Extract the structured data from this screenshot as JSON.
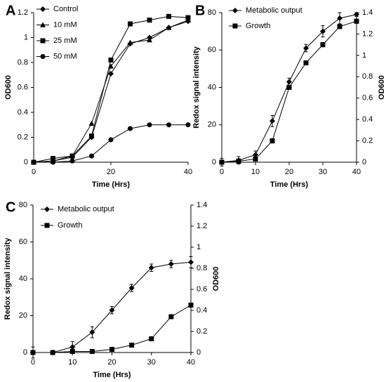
{
  "chart_data": [
    {
      "type": "line",
      "label": "A",
      "xlabel": "Time (Hrs)",
      "ylabel": "OD600",
      "x": [
        0,
        5,
        10,
        15,
        20,
        25,
        30,
        35,
        40
      ],
      "xlim": [
        0,
        40
      ],
      "xticks": [
        0,
        20,
        40
      ],
      "ylim": [
        0,
        1.2
      ],
      "yticks": [
        0,
        0.2,
        0.4,
        0.6,
        0.8,
        1,
        1.2
      ],
      "legend": "upper left",
      "series": [
        {
          "name": "Control",
          "color": "#000000",
          "marker": "diamond",
          "values": [
            0,
            0.01,
            0.04,
            0.2,
            0.71,
            0.95,
            1.0,
            1.08,
            1.13
          ]
        },
        {
          "name": "10 mM",
          "color": "#000000",
          "marker": "triangle",
          "values": [
            0,
            0.01,
            0.05,
            0.31,
            0.77,
            0.96,
            0.98,
            1.08,
            1.14
          ]
        },
        {
          "name": "25 mM",
          "color": "#000000",
          "marker": "square",
          "values": [
            0,
            0.03,
            0.05,
            0.21,
            0.82,
            1.11,
            1.14,
            1.17,
            1.16
          ]
        },
        {
          "name": "50 mM",
          "color": "#000000",
          "marker": "circle",
          "values": [
            0,
            0,
            0.01,
            0.05,
            0.18,
            0.27,
            0.3,
            0.3,
            0.3
          ]
        }
      ]
    },
    {
      "type": "line",
      "label": "B",
      "xlabel": "Time (Hrs)",
      "ylabel": "Redox signal intensity",
      "y2label": "OD600",
      "x": [
        0,
        5,
        10,
        15,
        20,
        25,
        30,
        35,
        40
      ],
      "xlim": [
        0,
        40
      ],
      "xticks": [
        0,
        10,
        20,
        30,
        40
      ],
      "ylim": [
        0,
        80
      ],
      "yticks": [
        0,
        20,
        40,
        60,
        80
      ],
      "y2lim": [
        0,
        1.4
      ],
      "y2ticks": [
        0,
        0.2,
        0.4,
        0.6,
        0.8,
        1,
        1.2,
        1.4
      ],
      "legend": "upper left",
      "series": [
        {
          "name": "Metabolic output",
          "color": "#000000",
          "marker": "diamond",
          "values": [
            0,
            1,
            4,
            22,
            43,
            61,
            70,
            77,
            79
          ],
          "errors": [
            2,
            2,
            2,
            3,
            2,
            2,
            3,
            3,
            1
          ]
        },
        {
          "name": "Growth",
          "color": "#000000",
          "marker": "square",
          "axis": "y2",
          "values": [
            0,
            0.01,
            0.03,
            0.2,
            0.7,
            0.93,
            1.1,
            1.27,
            1.32
          ],
          "errors": [
            0.02,
            0.02,
            0.02,
            0.02,
            0.02,
            0.02,
            0.02,
            0.02,
            0.02
          ]
        }
      ]
    },
    {
      "type": "line",
      "label": "C",
      "xlabel": "Time (Hrs)",
      "ylabel": "Redox signal intensity",
      "y2label": "OD600",
      "x": [
        0,
        5,
        10,
        15,
        20,
        25,
        30,
        35,
        40
      ],
      "xlim": [
        0,
        40
      ],
      "xticks": [
        0,
        10,
        20,
        30,
        40
      ],
      "ylim": [
        0,
        80
      ],
      "yticks": [
        0,
        20,
        40,
        60,
        80
      ],
      "y2lim": [
        0,
        1.4
      ],
      "y2ticks": [
        0,
        0.2,
        0.4,
        0.6,
        0.8,
        1,
        1.2,
        1.4
      ],
      "legend": "upper left",
      "series": [
        {
          "name": "Metabolic output",
          "color": "#000000",
          "marker": "diamond",
          "values": [
            0,
            0,
            3,
            11,
            23,
            35,
            46,
            48,
            49
          ],
          "errors": [
            3,
            1,
            3,
            3,
            2,
            2,
            2,
            2,
            3
          ]
        },
        {
          "name": "Growth",
          "color": "#000000",
          "marker": "square",
          "axis": "y2",
          "values": [
            0,
            0,
            0.01,
            0.01,
            0.03,
            0.07,
            0.13,
            0.34,
            0.45
          ],
          "errors": [
            0.01,
            0.01,
            0.01,
            0.01,
            0.01,
            0.01,
            0.01,
            0.01,
            0.01
          ]
        }
      ]
    }
  ]
}
